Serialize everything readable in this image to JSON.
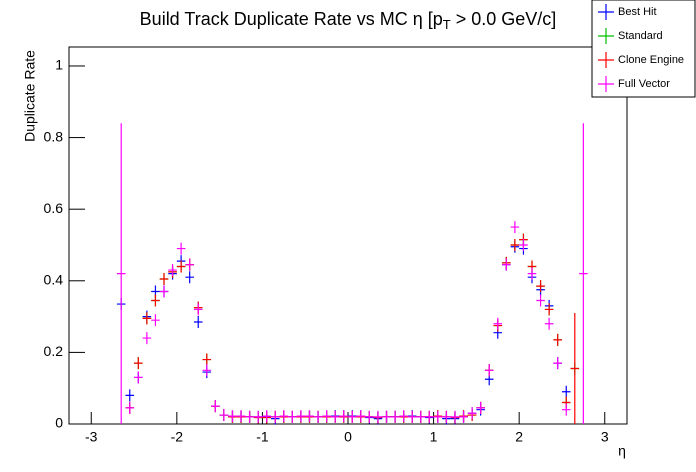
{
  "chart_data": {
    "type": "errorbar-scatter",
    "title": [
      "Build Track Duplicate Rate vs MC η [p",
      "T",
      " > 0.0 GeV/c]"
    ],
    "x_label": "η",
    "y_label": "Duplicate Rate",
    "x": [
      -2.65,
      -2.55,
      -2.45,
      -2.35,
      -2.25,
      -2.15,
      -2.05,
      -1.95,
      -1.85,
      -1.75,
      -1.65,
      -1.55,
      -1.45,
      -1.35,
      -1.25,
      -1.15,
      -1.05,
      -0.95,
      -0.85,
      -0.75,
      -0.65,
      -0.55,
      -0.45,
      -0.35,
      -0.25,
      -0.15,
      -0.05,
      0.05,
      0.15,
      0.25,
      0.35,
      0.45,
      0.55,
      0.65,
      0.75,
      0.85,
      0.95,
      1.05,
      1.15,
      1.25,
      1.35,
      1.45,
      1.55,
      1.65,
      1.75,
      1.85,
      1.95,
      2.05,
      2.15,
      2.25,
      2.35,
      2.45,
      2.55,
      2.65,
      2.75
    ],
    "bin_width": 0.1,
    "series": [
      {
        "name": "Best Hit",
        "color": "#0000ff",
        "values": [
          0.335,
          0.08,
          0.13,
          0.3,
          0.37,
          0.37,
          0.42,
          0.455,
          0.41,
          0.285,
          0.145,
          0.05,
          0.025,
          0.02,
          0.02,
          0.02,
          0.02,
          0.02,
          0.015,
          0.02,
          0.02,
          0.02,
          0.02,
          0.02,
          0.02,
          0.022,
          0.022,
          0.022,
          0.022,
          0.018,
          0.015,
          0.02,
          0.02,
          0.02,
          0.022,
          0.02,
          0.018,
          0.02,
          0.015,
          0.015,
          0.02,
          0.03,
          0.04,
          0.125,
          0.255,
          0.445,
          0.495,
          0.49,
          0.41,
          0.375,
          0.33,
          0.17,
          0.09,
          null,
          null
        ]
      },
      {
        "name": "Standard",
        "color": "#00c000",
        "values": [
          null,
          0.045,
          0.17,
          0.295,
          0.345,
          0.405,
          0.425,
          0.44,
          0.445,
          0.325,
          0.18,
          0.05,
          0.025,
          0.02,
          0.02,
          0.02,
          0.018,
          0.018,
          0.02,
          0.02,
          0.02,
          0.02,
          0.02,
          0.02,
          0.02,
          0.02,
          0.02,
          0.02,
          0.02,
          0.02,
          0.018,
          0.02,
          0.02,
          0.02,
          0.02,
          0.02,
          0.02,
          0.022,
          0.02,
          0.018,
          0.022,
          0.025,
          0.045,
          0.15,
          0.275,
          0.45,
          0.5,
          0.515,
          0.44,
          0.385,
          0.32,
          0.235,
          0.06,
          0.155,
          null
        ]
      },
      {
        "name": "Clone Engine",
        "color": "#ff0000",
        "values": [
          null,
          0.045,
          0.17,
          0.295,
          0.345,
          0.405,
          0.425,
          0.44,
          0.445,
          0.325,
          0.18,
          0.05,
          0.025,
          0.02,
          0.02,
          0.02,
          0.018,
          0.018,
          0.02,
          0.02,
          0.02,
          0.02,
          0.02,
          0.02,
          0.02,
          0.02,
          0.02,
          0.02,
          0.02,
          0.02,
          0.018,
          0.02,
          0.02,
          0.02,
          0.02,
          0.02,
          0.02,
          0.022,
          0.02,
          0.018,
          0.022,
          0.025,
          0.045,
          0.15,
          0.275,
          0.45,
          0.5,
          0.515,
          0.44,
          0.385,
          0.32,
          0.235,
          0.06,
          0.155,
          null
        ],
        "errors": [
          null,
          null,
          null,
          null,
          null,
          null,
          null,
          null,
          null,
          null,
          null,
          null,
          null,
          null,
          null,
          null,
          null,
          null,
          null,
          null,
          null,
          null,
          null,
          null,
          null,
          null,
          null,
          null,
          null,
          null,
          null,
          null,
          null,
          null,
          null,
          null,
          null,
          null,
          null,
          null,
          null,
          null,
          null,
          null,
          null,
          null,
          null,
          null,
          null,
          null,
          null,
          null,
          null,
          0.155,
          null
        ]
      },
      {
        "name": "Full Vector",
        "color": "#ff00ff",
        "values": [
          0.42,
          0.045,
          0.13,
          0.24,
          0.29,
          0.37,
          0.43,
          0.49,
          0.445,
          0.32,
          0.15,
          0.05,
          0.025,
          0.022,
          0.022,
          0.02,
          0.02,
          0.022,
          0.02,
          0.022,
          0.02,
          0.022,
          0.022,
          0.02,
          0.022,
          0.02,
          0.022,
          0.02,
          0.022,
          0.02,
          0.02,
          0.02,
          0.02,
          0.022,
          0.02,
          0.02,
          0.02,
          0.02,
          0.02,
          0.02,
          0.02,
          0.03,
          0.045,
          0.15,
          0.28,
          0.445,
          0.55,
          0.5,
          0.42,
          0.345,
          0.28,
          0.17,
          0.04,
          null,
          0.42
        ],
        "errors": [
          0.42,
          null,
          null,
          null,
          null,
          null,
          null,
          null,
          null,
          null,
          null,
          null,
          null,
          null,
          null,
          null,
          null,
          null,
          null,
          null,
          null,
          null,
          null,
          null,
          null,
          null,
          null,
          null,
          null,
          null,
          null,
          null,
          null,
          null,
          null,
          null,
          null,
          null,
          null,
          null,
          null,
          null,
          null,
          null,
          null,
          null,
          null,
          null,
          null,
          null,
          null,
          null,
          null,
          null,
          0.42
        ]
      }
    ],
    "xlim": [
      -3.26,
      3.26
    ],
    "xticks": [
      -3,
      -2,
      -1,
      0,
      1,
      2,
      3
    ],
    "ylim": [
      0,
      1.053
    ],
    "yticks": [
      0,
      0.2,
      0.4,
      0.6,
      0.8,
      1
    ],
    "legend": "top-right"
  }
}
